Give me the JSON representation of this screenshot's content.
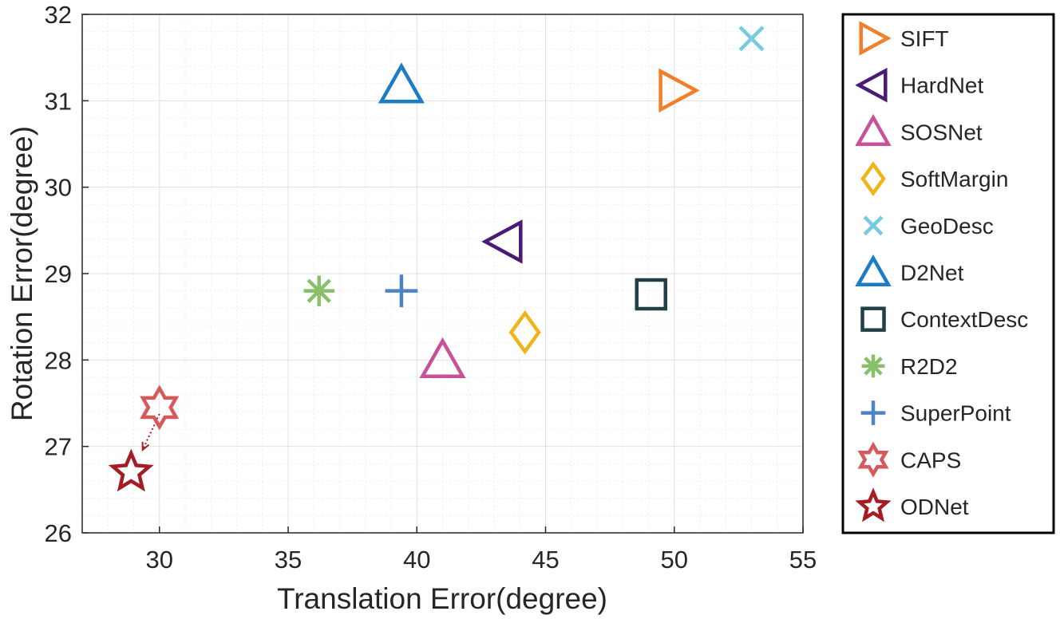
{
  "chart_data": {
    "type": "scatter",
    "xlabel": "Translation Error(degree)",
    "ylabel": "Rotation Error(degree)",
    "xlim": [
      27,
      55
    ],
    "ylim": [
      26,
      32
    ],
    "xticks": [
      30,
      35,
      40,
      45,
      50,
      55
    ],
    "yticks": [
      26,
      27,
      28,
      29,
      30,
      31,
      32
    ],
    "grid": true,
    "minor_grid": true,
    "legend_position": "outside-right",
    "series": [
      {
        "name": "SIFT",
        "marker": "triangle-right",
        "color": "#F47F2A",
        "x": 50.1,
        "y": 31.12
      },
      {
        "name": "HardNet",
        "marker": "triangle-left",
        "color": "#4B1A77",
        "x": 43.4,
        "y": 29.37
      },
      {
        "name": "SOSNet",
        "marker": "triangle-up",
        "color": "#C8519A",
        "x": 41.0,
        "y": 28.0
      },
      {
        "name": "SoftMargin",
        "marker": "diamond",
        "color": "#F0B418",
        "x": 44.2,
        "y": 28.32
      },
      {
        "name": "GeoDesc",
        "marker": "x",
        "color": "#78CAE0",
        "x": 53.0,
        "y": 31.72
      },
      {
        "name": "D2Net",
        "marker": "triangle-up",
        "color": "#1C7CC4",
        "x": 39.4,
        "y": 31.18
      },
      {
        "name": "ContextDesc",
        "marker": "square",
        "color": "#223F47",
        "x": 49.1,
        "y": 28.76
      },
      {
        "name": "R2D2",
        "marker": "asterisk",
        "color": "#88C06A",
        "x": 36.2,
        "y": 28.8
      },
      {
        "name": "SuperPoint",
        "marker": "plus",
        "color": "#4F84C4",
        "x": 39.4,
        "y": 28.8
      },
      {
        "name": "CAPS",
        "marker": "hexagram",
        "color": "#D65A5A",
        "x": 30.0,
        "y": 27.45
      },
      {
        "name": "ODNet",
        "marker": "pentagram",
        "color": "#A51C24",
        "x": 28.9,
        "y": 26.7
      }
    ],
    "annotation": {
      "type": "arrow",
      "from": [
        30.0,
        27.45
      ],
      "to": [
        29.1,
        26.85
      ],
      "color": "#A51C24",
      "style": "dotted"
    }
  }
}
